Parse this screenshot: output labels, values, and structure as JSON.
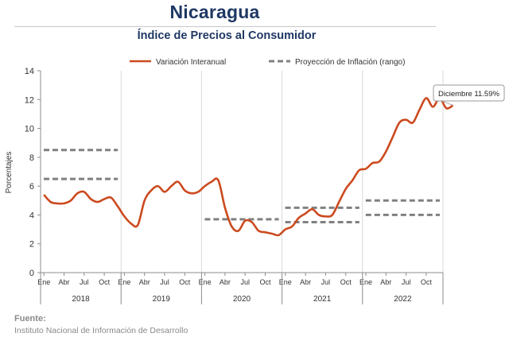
{
  "title": "Nicaragua",
  "subtitle": "Índice de Precios al Consumidor",
  "source": {
    "label": "Fuente:",
    "text": "Instituto Nacional de Información de  Desarrollo"
  },
  "chart_data": {
    "type": "line",
    "ylabel": "Porcentajes",
    "ylim": [
      0,
      14
    ],
    "yticks": [
      0,
      2,
      4,
      6,
      8,
      10,
      12,
      14
    ],
    "grid": "vertical",
    "legend_position": "top",
    "month_ticks": [
      "Ene",
      "Abr",
      "Jul",
      "Oct"
    ],
    "years": [
      "2018",
      "2019",
      "2020",
      "2021",
      "2022"
    ],
    "series": [
      {
        "name": "Variación Interanual",
        "style": "solid",
        "color": "#cc4a1f",
        "values": [
          5.4,
          4.9,
          4.8,
          4.8,
          5.0,
          5.5,
          5.6,
          5.1,
          4.9,
          5.1,
          5.2,
          4.6,
          3.9,
          3.4,
          3.3,
          5.0,
          5.7,
          6.0,
          5.6,
          6.0,
          6.3,
          5.7,
          5.5,
          5.6,
          6.0,
          6.3,
          6.4,
          4.5,
          3.2,
          2.9,
          3.6,
          3.5,
          2.9,
          2.8,
          2.7,
          2.6,
          3.0,
          3.2,
          3.8,
          4.1,
          4.4,
          4.0,
          3.9,
          4.0,
          4.9,
          5.8,
          6.4,
          7.1,
          7.2,
          7.6,
          7.7,
          8.4,
          9.4,
          10.4,
          10.6,
          10.4,
          11.3,
          12.1,
          11.5,
          12.1,
          11.4,
          11.6
        ]
      },
      {
        "name": "Proyección de Inflación (rango)",
        "style": "dashed",
        "color": "#808080",
        "ranges": [
          {
            "year": "2018",
            "low": 6.5,
            "high": 8.5
          },
          {
            "year": "2020",
            "low": 3.7,
            "high": 3.7
          },
          {
            "year": "2021",
            "low": 3.5,
            "high": 4.5
          },
          {
            "year": "2022",
            "low": 4.0,
            "high": 5.0
          }
        ]
      }
    ],
    "annotation": {
      "text": "Diciembre 11.59%",
      "value": 11.59
    }
  }
}
